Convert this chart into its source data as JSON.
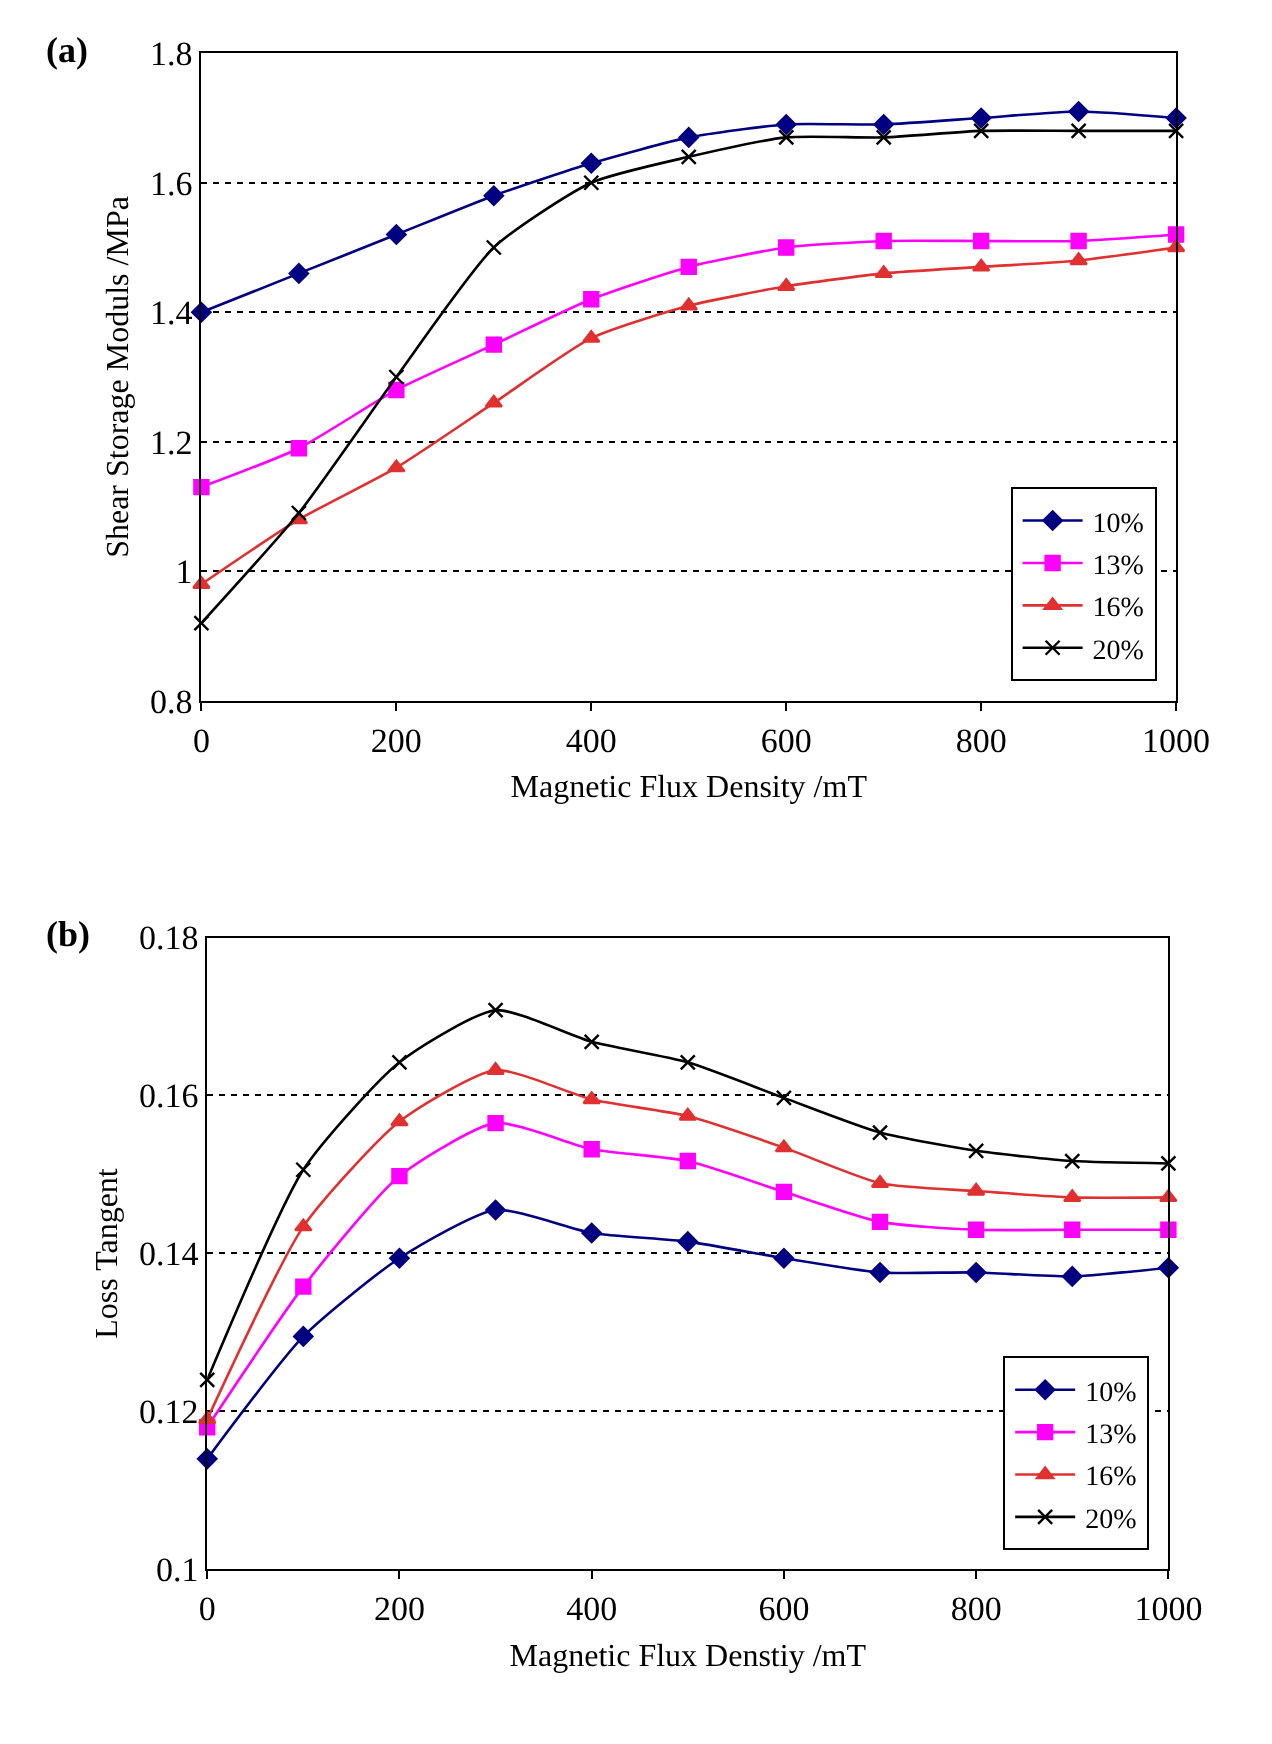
{
  "chart_data": [
    {
      "type": "line",
      "title": "(a)",
      "xlabel": "Magnetic Flux Density /mT",
      "ylabel": "Shear Storage Moduls /MPa",
      "x": [
        0,
        100,
        200,
        300,
        400,
        500,
        600,
        700,
        800,
        900,
        1000
      ],
      "series": [
        {
          "name": "10%",
          "color": "#000080",
          "marker": "diamond",
          "values": [
            1.4,
            1.46,
            1.52,
            1.58,
            1.63,
            1.67,
            1.69,
            1.69,
            1.7,
            1.71,
            1.7
          ]
        },
        {
          "name": "13%",
          "color": "#ff00ff",
          "marker": "square",
          "values": [
            1.13,
            1.19,
            1.28,
            1.35,
            1.42,
            1.47,
            1.5,
            1.51,
            1.51,
            1.51,
            1.52
          ]
        },
        {
          "name": "16%",
          "color": "#e03030",
          "marker": "triangle",
          "values": [
            0.98,
            1.08,
            1.16,
            1.26,
            1.36,
            1.41,
            1.44,
            1.46,
            1.47,
            1.48,
            1.5
          ]
        },
        {
          "name": "20%",
          "color": "#000000",
          "marker": "cross",
          "values": [
            0.92,
            1.09,
            1.3,
            1.5,
            1.6,
            1.64,
            1.67,
            1.67,
            1.68,
            1.68,
            1.68
          ]
        }
      ],
      "xlim": [
        0,
        1000
      ],
      "xticks": [
        0,
        200,
        400,
        600,
        800,
        1000
      ],
      "ylim": [
        0.8,
        1.8
      ],
      "yticks": [
        0.8,
        1,
        1.2,
        1.4,
        1.6,
        1.8
      ],
      "grid": "y",
      "legend": "bottom right"
    },
    {
      "type": "line",
      "title": "(b)",
      "xlabel": "Magnetic Flux Denstiy /mT",
      "ylabel": "Loss Tangent",
      "x": [
        0,
        100,
        200,
        300,
        400,
        500,
        600,
        700,
        800,
        900,
        1000
      ],
      "series": [
        {
          "name": "10%",
          "color": "#000080",
          "marker": "diamond",
          "values": [
            0.114,
            0.1295,
            0.1394,
            0.1455,
            0.1426,
            0.1415,
            0.1394,
            0.1376,
            0.1376,
            0.1371,
            0.1382
          ]
        },
        {
          "name": "13%",
          "color": "#ff00ff",
          "marker": "square",
          "values": [
            0.118,
            0.1358,
            0.1498,
            0.1565,
            0.1532,
            0.1517,
            0.1478,
            0.144,
            0.143,
            0.143,
            0.143
          ]
        },
        {
          "name": "16%",
          "color": "#e03030",
          "marker": "triangle",
          "values": [
            0.119,
            0.1434,
            0.1567,
            0.1632,
            0.1595,
            0.1574,
            0.1534,
            0.1489,
            0.1479,
            0.1471,
            0.1471
          ]
        },
        {
          "name": "20%",
          "color": "#000000",
          "marker": "cross",
          "values": [
            0.124,
            0.1506,
            0.1642,
            0.1708,
            0.1668,
            0.1642,
            0.1597,
            0.1553,
            0.153,
            0.1517,
            0.1514
          ]
        }
      ],
      "xlim": [
        0,
        1000
      ],
      "xticks": [
        0,
        200,
        400,
        600,
        800,
        1000
      ],
      "ylim": [
        0.1,
        0.18
      ],
      "yticks": [
        0.1,
        0.12,
        0.14,
        0.16,
        0.18
      ],
      "grid": "y",
      "legend": "bottom right"
    }
  ]
}
